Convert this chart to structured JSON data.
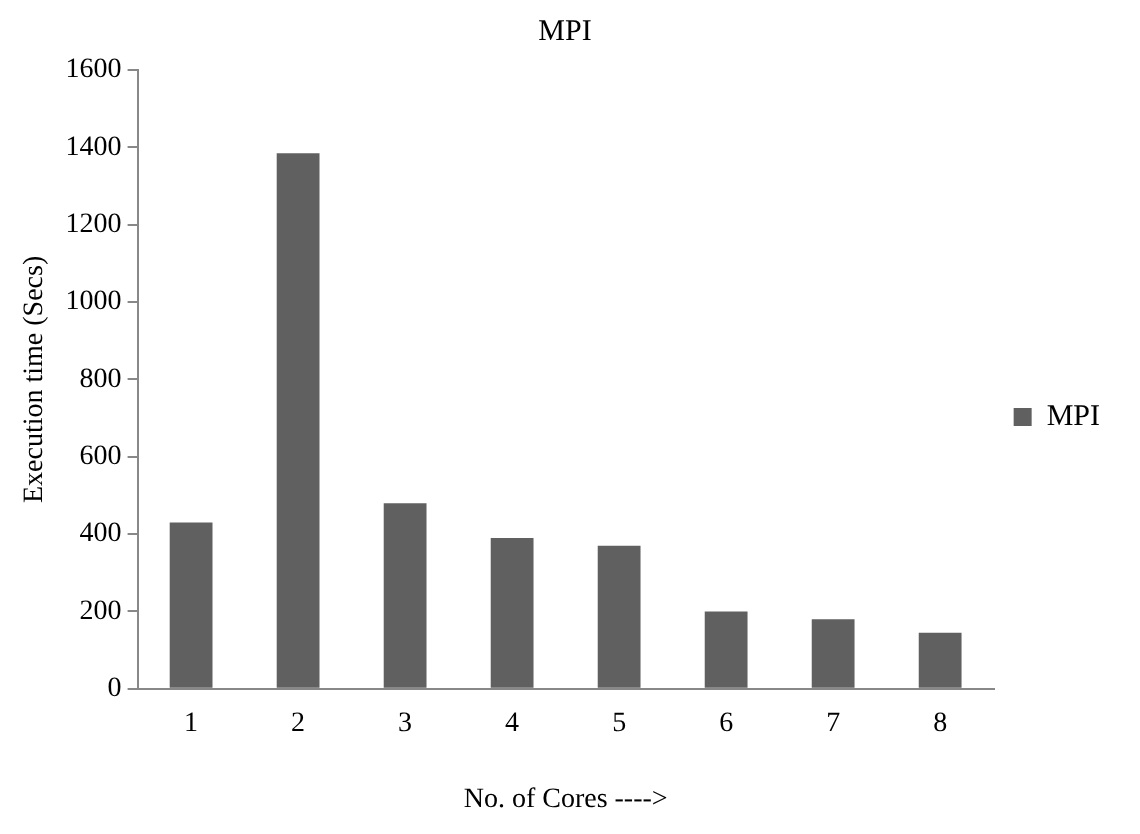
{
  "chart_data": {
    "type": "bar",
    "title": "MPI",
    "xlabel": "No. of Cores ---->",
    "ylabel": "Execution time (Secs)",
    "categories": [
      "1",
      "2",
      "3",
      "4",
      "5",
      "6",
      "7",
      "8"
    ],
    "series": [
      {
        "name": "MPI",
        "color": "#606060",
        "values": [
          430,
          1385,
          480,
          390,
          370,
          200,
          180,
          145
        ]
      }
    ],
    "ylim": [
      0,
      1600
    ],
    "yticks": [
      0,
      200,
      400,
      600,
      800,
      1000,
      1200,
      1400,
      1600
    ],
    "grid": false,
    "legend": "right"
  }
}
